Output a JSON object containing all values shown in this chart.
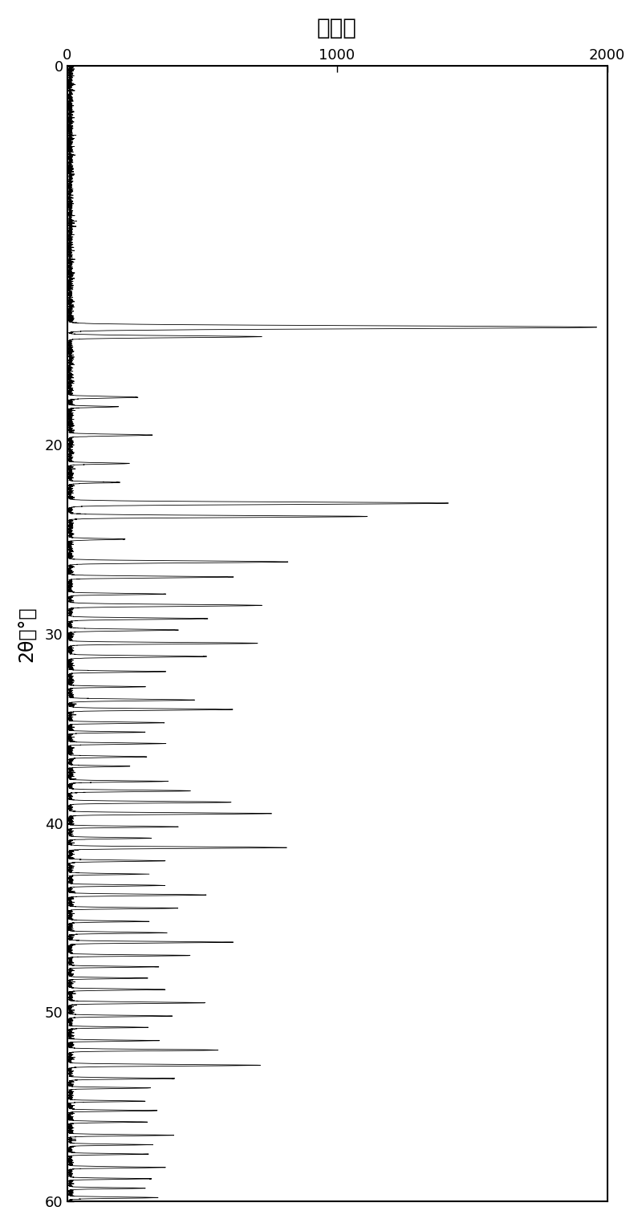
{
  "title": "強　度",
  "ylabel_rotated": "2θ（°）",
  "x_ticks": [
    0,
    1000,
    2000
  ],
  "y_ticks": [
    0,
    20,
    30,
    40,
    50,
    60
  ],
  "xlim": [
    0,
    2000
  ],
  "ylim": [
    0,
    60
  ],
  "background_color": "#ffffff",
  "line_color": "#000000",
  "figsize": [
    8.0,
    15.29
  ]
}
